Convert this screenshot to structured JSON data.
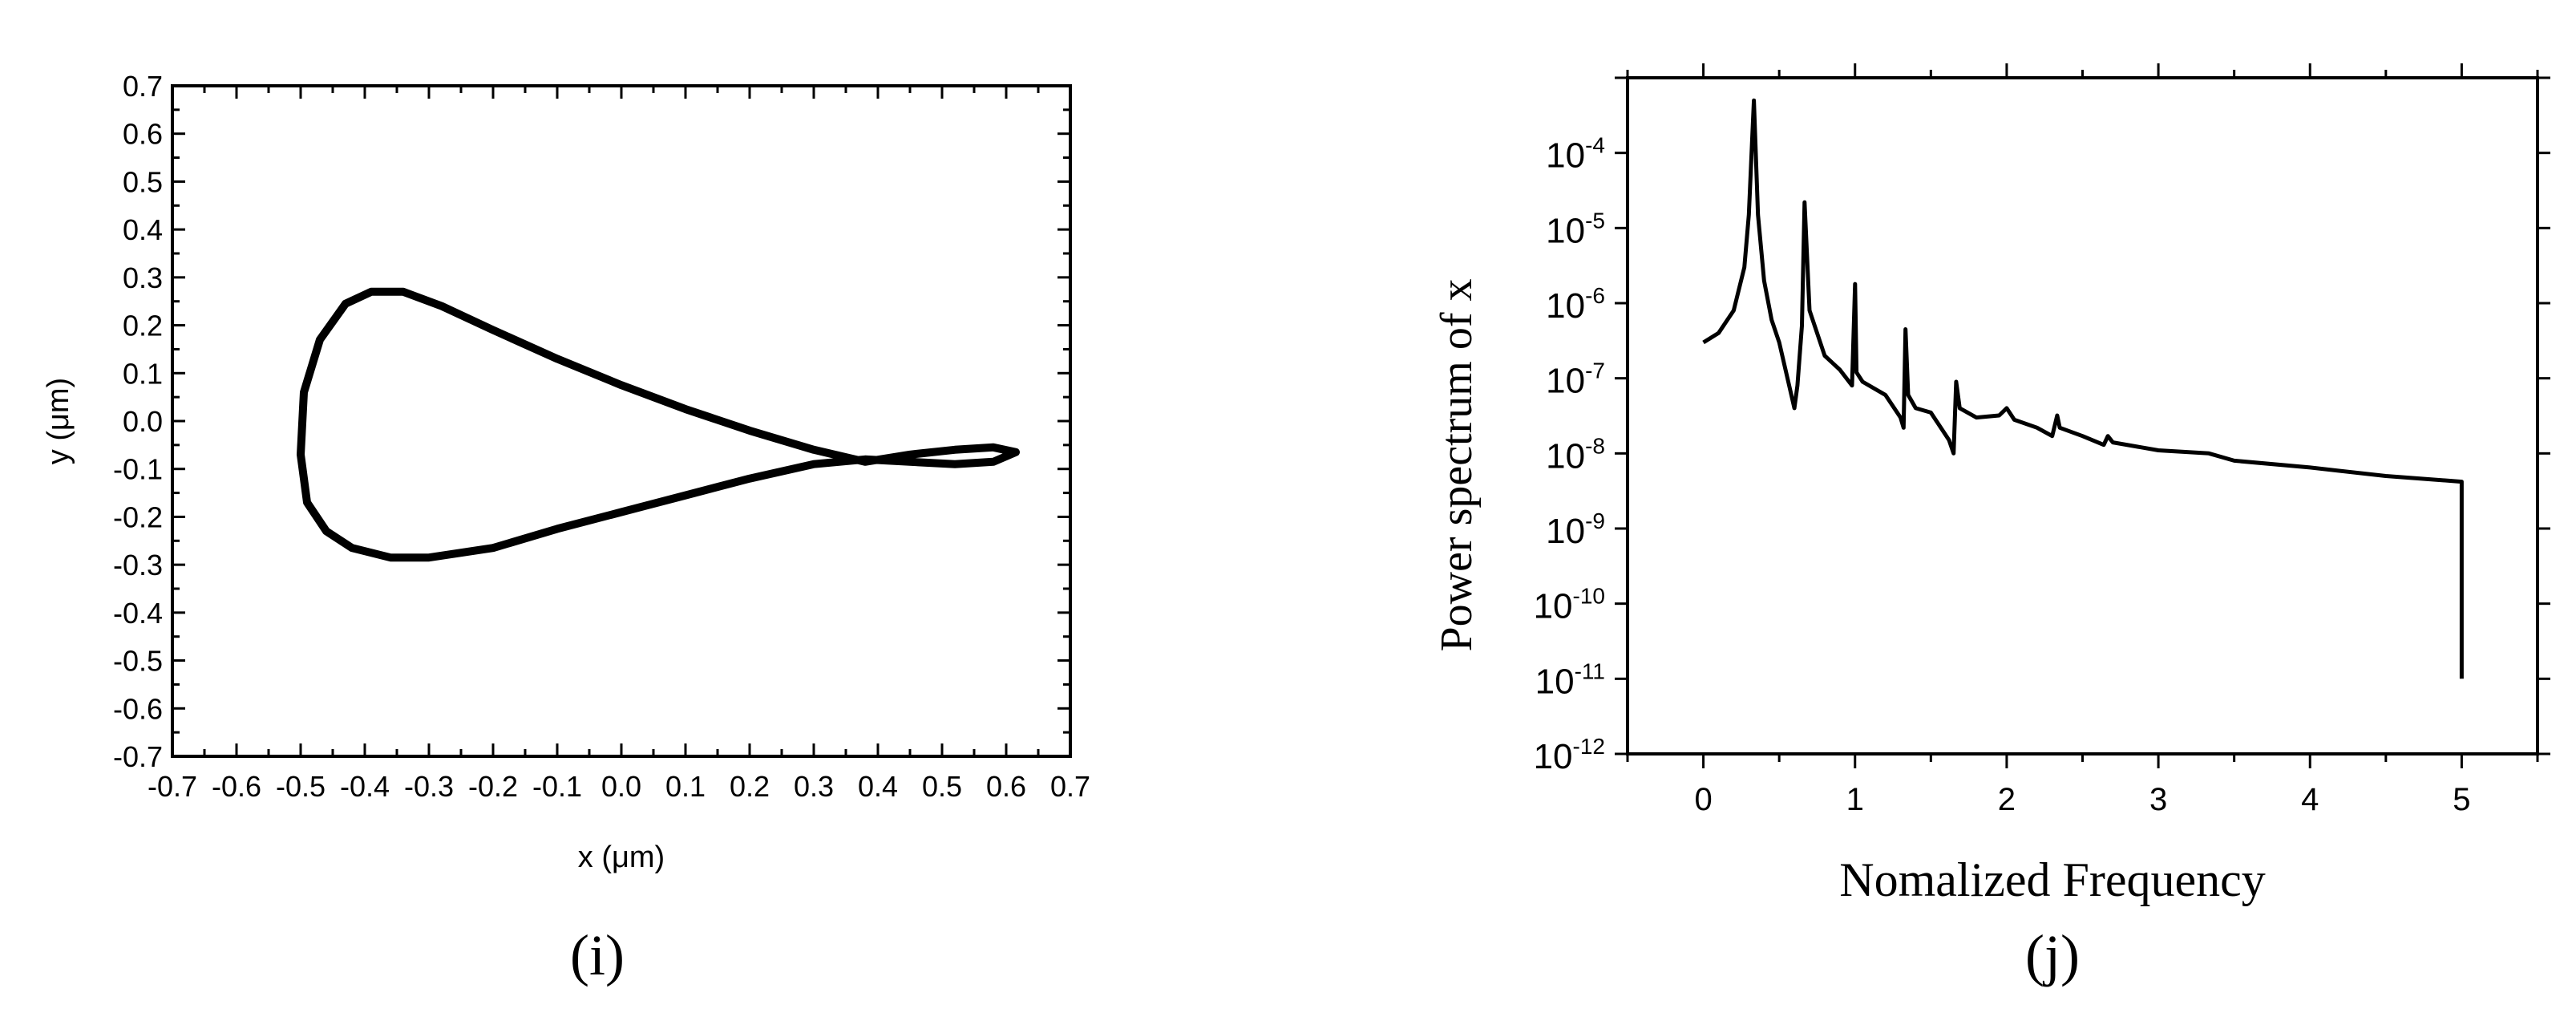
{
  "panels": [
    {
      "caption": "(i)"
    },
    {
      "caption": "(j)"
    }
  ],
  "chart_data": [
    {
      "type": "line",
      "title": "",
      "xlabel": "x (μm)",
      "ylabel": "y (μm)",
      "xlim": [
        -0.7,
        0.7
      ],
      "ylim": [
        -0.7,
        0.7
      ],
      "x_ticks": [
        "-0.7",
        "-0.6",
        "-0.5",
        "-0.4",
        "-0.3",
        "-0.2",
        "-0.1",
        "0.0",
        "0.1",
        "0.2",
        "0.3",
        "0.4",
        "0.5",
        "0.6",
        "0.7"
      ],
      "y_ticks": [
        "0.7",
        "0.6",
        "0.5",
        "0.4",
        "0.3",
        "0.2",
        "0.1",
        "0.0",
        "-0.1",
        "-0.2",
        "-0.3",
        "-0.4",
        "-0.5",
        "-0.6",
        "-0.7"
      ],
      "grid": false,
      "line_color": "#000000",
      "series": [
        {
          "x": [
            0.615,
            0.58,
            0.52,
            0.45,
            0.38,
            0.3,
            0.2,
            0.1,
            0.0,
            -0.1,
            -0.2,
            -0.28,
            -0.34,
            -0.39,
            -0.43,
            -0.47,
            -0.495,
            -0.5,
            -0.49,
            -0.46,
            -0.42,
            -0.36,
            -0.3,
            -0.2,
            -0.1,
            0.0,
            0.1,
            0.2,
            0.3,
            0.38,
            0.45,
            0.52,
            0.58,
            0.615
          ],
          "y": [
            -0.065,
            -0.055,
            -0.06,
            -0.07,
            -0.085,
            -0.06,
            -0.02,
            0.025,
            0.075,
            0.13,
            0.19,
            0.24,
            0.27,
            0.27,
            0.245,
            0.17,
            0.06,
            -0.07,
            -0.17,
            -0.23,
            -0.265,
            -0.285,
            -0.285,
            -0.265,
            -0.225,
            -0.19,
            -0.155,
            -0.12,
            -0.09,
            -0.08,
            -0.085,
            -0.09,
            -0.085,
            -0.065
          ]
        }
      ]
    },
    {
      "type": "line",
      "title": "",
      "xlabel": "Nomalized Frequency",
      "ylabel": "Power spectrum of x",
      "xlim": [
        -0.5,
        5.5
      ],
      "ylim": [
        1e-12,
        0.001
      ],
      "yscale": "log",
      "x_ticks": [
        "0",
        "1",
        "2",
        "3",
        "4",
        "5"
      ],
      "y_ticks": [
        {
          "base": "10",
          "exp": "-4"
        },
        {
          "base": "10",
          "exp": "-5"
        },
        {
          "base": "10",
          "exp": "-6"
        },
        {
          "base": "10",
          "exp": "-7"
        },
        {
          "base": "10",
          "exp": "-8"
        },
        {
          "base": "10",
          "exp": "-9"
        },
        {
          "base": "10",
          "exp": "-10"
        },
        {
          "base": "10",
          "exp": "-11"
        },
        {
          "base": "10",
          "exp": "-12"
        }
      ],
      "grid": false,
      "line_color": "#000000",
      "series": [
        {
          "x": [
            0.0,
            0.1,
            0.2,
            0.27,
            0.3,
            0.333,
            0.36,
            0.4,
            0.45,
            0.5,
            0.6,
            0.62,
            0.65,
            0.667,
            0.7,
            0.8,
            0.9,
            0.98,
            1.0,
            1.01,
            1.05,
            1.2,
            1.3,
            1.32,
            1.333,
            1.35,
            1.4,
            1.5,
            1.62,
            1.65,
            1.667,
            1.69,
            1.8,
            1.95,
            2.0,
            2.05,
            2.2,
            2.3,
            2.333,
            2.35,
            2.5,
            2.64,
            2.667,
            2.7,
            3.0,
            3.333,
            3.5,
            4.0,
            4.5,
            5.0,
            5.0
          ],
          "y": [
            3e-07,
            4e-07,
            8e-07,
            3e-06,
            1.5e-05,
            0.0005,
            1.5e-05,
            2e-06,
            6e-07,
            3e-07,
            4e-08,
            8e-08,
            5e-07,
            2.2e-05,
            8e-07,
            2e-07,
            1.3e-07,
            8e-08,
            1.8e-06,
            1.2e-07,
            9e-08,
            6e-08,
            3e-08,
            2.2e-08,
            4.5e-07,
            6e-08,
            4e-08,
            3.5e-08,
            1.5e-08,
            1e-08,
            9e-08,
            4e-08,
            3e-08,
            3.2e-08,
            4e-08,
            2.8e-08,
            2.2e-08,
            1.7e-08,
            3.2e-08,
            2.2e-08,
            1.7e-08,
            1.3e-08,
            1.7e-08,
            1.4e-08,
            1.1e-08,
            1e-08,
            8e-09,
            6.5e-09,
            5e-09,
            4.2e-09,
            1e-11
          ]
        }
      ]
    }
  ]
}
